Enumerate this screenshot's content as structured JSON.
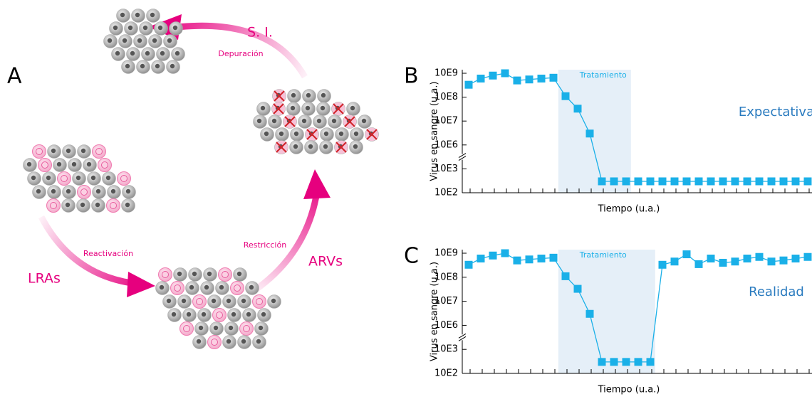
{
  "diagram": {
    "panel": "A",
    "labels": {
      "si": "S. I.",
      "depuracion": "Depuración",
      "restriccion": "Restricción",
      "arvs": "ARVs",
      "reactivacion": "Reactivación",
      "lras": "LRAs"
    }
  },
  "chart_data": [
    {
      "type": "line",
      "panel": "B",
      "annotation": "Expectativa",
      "ylabel": "Virus en sangre (u.a.)",
      "xlabel": "Tiempo (u.a.)",
      "categories": [
        null,
        null,
        null,
        null,
        null,
        null,
        null,
        null,
        null,
        null,
        null,
        null,
        null,
        null,
        null,
        null,
        null,
        null,
        null,
        null,
        null,
        null,
        null,
        null,
        null,
        null,
        null,
        null,
        null
      ],
      "values": [
        330000000,
        600000000,
        800000000,
        1000000000,
        500000000,
        550000000,
        600000000,
        650000000,
        110000000,
        33000000,
        3000000,
        300,
        300,
        300,
        300,
        300,
        300,
        300,
        300,
        300,
        300,
        300,
        300,
        300,
        300,
        300,
        300,
        300,
        300
      ],
      "color": "#1ab0e8",
      "log": true,
      "axis_break": [
        1000,
        1000000
      ],
      "ylim": [
        100,
        1000000000
      ],
      "yticks": [
        {
          "value": 100,
          "label": "10E2"
        },
        {
          "value": 1000,
          "label": "10E3"
        },
        {
          "value": 1000000,
          "label": "10E6"
        },
        {
          "value": 10000000,
          "label": "10E7"
        },
        {
          "value": 100000000,
          "label": "10E8"
        },
        {
          "value": 1000000000,
          "label": "10E9"
        }
      ],
      "shade": {
        "label": "Tratamiento",
        "span": [
          7.4,
          13.4
        ]
      }
    },
    {
      "type": "line",
      "panel": "C",
      "annotation": "Realidad",
      "ylabel": "Virus en sangre (u.a.)",
      "xlabel": "Tiempo (u.a.)",
      "categories": [
        null,
        null,
        null,
        null,
        null,
        null,
        null,
        null,
        null,
        null,
        null,
        null,
        null,
        null,
        null,
        null,
        null,
        null,
        null,
        null,
        null,
        null,
        null,
        null,
        null,
        null,
        null,
        null,
        null
      ],
      "values": [
        330000000,
        600000000,
        800000000,
        1000000000,
        500000000,
        550000000,
        600000000,
        650000000,
        110000000,
        33000000,
        3000000,
        300,
        300,
        300,
        300,
        300,
        330000000,
        450000000,
        900000000,
        350000000,
        600000000,
        400000000,
        450000000,
        600000000,
        700000000,
        450000000,
        500000000,
        600000000,
        700000000
      ],
      "color": "#1ab0e8",
      "log": true,
      "axis_break": [
        1000,
        1000000
      ],
      "ylim": [
        100,
        1000000000
      ],
      "yticks": [
        {
          "value": 100,
          "label": "10E2"
        },
        {
          "value": 1000,
          "label": "10E3"
        },
        {
          "value": 1000000,
          "label": "10E6"
        },
        {
          "value": 10000000,
          "label": "10E7"
        },
        {
          "value": 100000000,
          "label": "10E8"
        },
        {
          "value": 1000000000,
          "label": "10E9"
        }
      ],
      "shade": {
        "label": "Tratamiento",
        "span": [
          7.4,
          15.4
        ]
      }
    }
  ]
}
